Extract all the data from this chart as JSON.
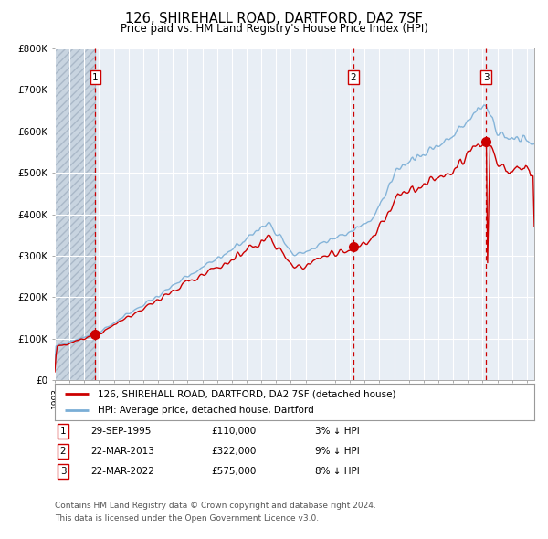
{
  "title1": "126, SHIREHALL ROAD, DARTFORD, DA2 7SF",
  "title2": "Price paid vs. HM Land Registry's House Price Index (HPI)",
  "legend_line1": "126, SHIREHALL ROAD, DARTFORD, DA2 7SF (detached house)",
  "legend_line2": "HPI: Average price, detached house, Dartford",
  "table": [
    {
      "num": "1",
      "date": "29-SEP-1995",
      "price": "£110,000",
      "pct": "3% ↓ HPI"
    },
    {
      "num": "2",
      "date": "22-MAR-2013",
      "price": "£322,000",
      "pct": "9% ↓ HPI"
    },
    {
      "num": "3",
      "date": "22-MAR-2022",
      "price": "£575,000",
      "pct": "8% ↓ HPI"
    }
  ],
  "footnote1": "Contains HM Land Registry data © Crown copyright and database right 2024.",
  "footnote2": "This data is licensed under the Open Government Licence v3.0.",
  "vline_years": [
    1995.75,
    2013.22,
    2022.22
  ],
  "vline_labels": [
    "1",
    "2",
    "3"
  ],
  "purchase_years": [
    1995.75,
    2013.22,
    2022.22
  ],
  "purchase_prices": [
    110000,
    322000,
    575000
  ],
  "ylim": [
    0,
    800000
  ],
  "xlim_start": 1993.0,
  "xlim_end": 2025.5,
  "hatch_xlim_end": 1995.75,
  "red_color": "#cc0000",
  "blue_color": "#7aaed6",
  "plot_bg_color": "#e8eef5",
  "grid_color": "#ffffff",
  "hatch_color": "#c8d4e0"
}
